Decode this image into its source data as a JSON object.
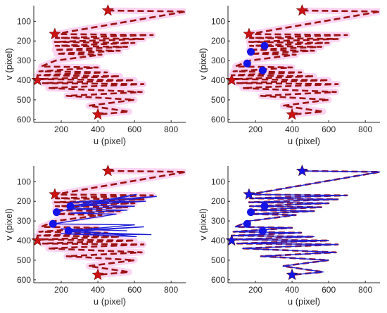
{
  "colors": {
    "reference": "#9c1212",
    "reference_inner": "#d21e1e",
    "tolerance_band": "#f9ccef",
    "tracked": "#1f1fd8",
    "marker_red": "#cc1111",
    "marker_blue": "#1414e6",
    "axis": "#262626"
  },
  "chart_data": [
    {
      "type": "line",
      "panel": "top-left",
      "xlabel": "u (pixel)",
      "ylabel": "v (pixel)",
      "xlim": [
        50,
        880
      ],
      "ylim": [
        20,
        615
      ],
      "y_reversed": true,
      "xticks": [
        200,
        400,
        600,
        800
      ],
      "yticks": [
        100,
        200,
        300,
        400,
        500,
        600
      ],
      "grid": false,
      "series": [
        {
          "role": "reference",
          "style": "dashed",
          "show_band": true,
          "points": [
            [
              455,
              45
            ],
            [
              880,
              50
            ],
            [
              165,
              165
            ],
            [
              700,
              170
            ],
            [
              170,
              185
            ],
            [
              650,
              190
            ],
            [
              165,
              205
            ],
            [
              600,
              210
            ],
            [
              170,
              225
            ],
            [
              560,
              230
            ],
            [
              165,
              245
            ],
            [
              520,
              250
            ],
            [
              175,
              265
            ],
            [
              420,
              270
            ],
            [
              170,
              300
            ],
            [
              90,
              330
            ],
            [
              400,
              335
            ],
            [
              80,
              355
            ],
            [
              450,
              360
            ],
            [
              70,
              375
            ],
            [
              520,
              380
            ],
            [
              75,
              395
            ],
            [
              600,
              400
            ],
            [
              100,
              415
            ],
            [
              650,
              420
            ],
            [
              130,
              440
            ],
            [
              640,
              460
            ],
            [
              230,
              480
            ],
            [
              600,
              500
            ],
            [
              350,
              530
            ],
            [
              570,
              560
            ],
            [
              400,
              575
            ]
          ]
        },
        {
          "role": "stars",
          "color": "red",
          "points": [
            [
              455,
              45
            ],
            [
              165,
              165
            ],
            [
              70,
              400
            ],
            [
              400,
              575
            ]
          ]
        }
      ]
    },
    {
      "type": "line",
      "panel": "top-right",
      "xlabel": "u (pixel)",
      "ylabel": "v (pixel)",
      "xlim": [
        50,
        880
      ],
      "ylim": [
        20,
        615
      ],
      "y_reversed": true,
      "xticks": [
        200,
        400,
        600,
        800
      ],
      "yticks": [
        100,
        200,
        300,
        400,
        500,
        600
      ],
      "grid": false,
      "series": [
        {
          "role": "reference",
          "style": "dashed",
          "show_band": true,
          "points": [
            [
              455,
              45
            ],
            [
              880,
              50
            ],
            [
              165,
              165
            ],
            [
              700,
              170
            ],
            [
              170,
              185
            ],
            [
              650,
              190
            ],
            [
              165,
              205
            ],
            [
              600,
              210
            ],
            [
              170,
              225
            ],
            [
              560,
              230
            ],
            [
              165,
              245
            ],
            [
              520,
              250
            ],
            [
              175,
              265
            ],
            [
              420,
              270
            ],
            [
              170,
              300
            ],
            [
              90,
              330
            ],
            [
              400,
              335
            ],
            [
              80,
              355
            ],
            [
              450,
              360
            ],
            [
              70,
              375
            ],
            [
              520,
              380
            ],
            [
              75,
              395
            ],
            [
              600,
              400
            ],
            [
              100,
              415
            ],
            [
              650,
              420
            ],
            [
              130,
              440
            ],
            [
              640,
              460
            ],
            [
              230,
              480
            ],
            [
              600,
              500
            ],
            [
              350,
              530
            ],
            [
              570,
              560
            ],
            [
              400,
              575
            ]
          ]
        },
        {
          "role": "stars",
          "color": "red",
          "points": [
            [
              455,
              45
            ],
            [
              165,
              165
            ],
            [
              70,
              400
            ],
            [
              400,
              575
            ]
          ]
        },
        {
          "role": "circles",
          "color": "blue",
          "points": [
            [
              250,
              225
            ],
            [
              175,
              255
            ],
            [
              155,
              315
            ],
            [
              240,
              350
            ]
          ]
        }
      ]
    },
    {
      "type": "line",
      "panel": "bottom-left",
      "xlabel": "u (pixel)",
      "ylabel": "v (pixel)",
      "xlim": [
        50,
        880
      ],
      "ylim": [
        20,
        615
      ],
      "y_reversed": true,
      "xticks": [
        200,
        400,
        600,
        800
      ],
      "yticks": [
        100,
        200,
        300,
        400,
        500,
        600
      ],
      "grid": false,
      "series": [
        {
          "role": "reference",
          "style": "dashed",
          "show_band": true,
          "points": [
            [
              455,
              45
            ],
            [
              880,
              50
            ],
            [
              165,
              165
            ],
            [
              700,
              170
            ],
            [
              170,
              185
            ],
            [
              650,
              190
            ],
            [
              165,
              205
            ],
            [
              600,
              210
            ],
            [
              170,
              225
            ],
            [
              560,
              230
            ],
            [
              165,
              245
            ],
            [
              520,
              250
            ],
            [
              175,
              265
            ],
            [
              420,
              270
            ],
            [
              170,
              300
            ],
            [
              90,
              330
            ],
            [
              400,
              335
            ],
            [
              80,
              355
            ],
            [
              450,
              360
            ],
            [
              70,
              375
            ],
            [
              520,
              380
            ],
            [
              75,
              395
            ],
            [
              600,
              400
            ],
            [
              100,
              415
            ],
            [
              650,
              420
            ],
            [
              130,
              440
            ],
            [
              640,
              460
            ],
            [
              230,
              480
            ],
            [
              600,
              500
            ],
            [
              350,
              530
            ],
            [
              570,
              560
            ],
            [
              400,
              575
            ]
          ]
        },
        {
          "role": "tracked",
          "style": "solid",
          "points": [
            [
              175,
              255
            ],
            [
              610,
              165
            ],
            [
              250,
              225
            ],
            [
              720,
              175
            ],
            [
              250,
              205
            ],
            [
              660,
              200
            ],
            [
              250,
              220
            ],
            [
              600,
              225
            ],
            [
              255,
              240
            ],
            [
              560,
              245
            ],
            [
              250,
              260
            ],
            [
              500,
              265
            ],
            [
              155,
              315
            ],
            [
              600,
              320
            ],
            [
              240,
              350
            ],
            [
              650,
              330
            ],
            [
              240,
              355
            ],
            [
              690,
              370
            ],
            [
              200,
              365
            ],
            [
              610,
              380
            ],
            [
              200,
              340
            ],
            [
              560,
              350
            ]
          ]
        },
        {
          "role": "stars",
          "color": "red",
          "points": [
            [
              455,
              45
            ],
            [
              165,
              165
            ],
            [
              70,
              400
            ],
            [
              400,
              575
            ]
          ]
        },
        {
          "role": "circles",
          "color": "blue",
          "points": [
            [
              250,
              225
            ],
            [
              175,
              255
            ],
            [
              155,
              315
            ],
            [
              240,
              350
            ]
          ]
        }
      ]
    },
    {
      "type": "line",
      "panel": "bottom-right",
      "xlabel": "u (pixel)",
      "ylabel": "v (pixel)",
      "xlim": [
        50,
        880
      ],
      "ylim": [
        20,
        615
      ],
      "y_reversed": true,
      "xticks": [
        200,
        400,
        600,
        800
      ],
      "yticks": [
        100,
        200,
        300,
        400,
        500,
        600
      ],
      "grid": false,
      "series": [
        {
          "role": "reference",
          "style": "dashed",
          "show_band": false,
          "points": [
            [
              455,
              45
            ],
            [
              880,
              50
            ],
            [
              165,
              165
            ],
            [
              700,
              170
            ],
            [
              170,
              185
            ],
            [
              650,
              190
            ],
            [
              165,
              205
            ],
            [
              600,
              210
            ],
            [
              170,
              225
            ],
            [
              560,
              230
            ],
            [
              165,
              245
            ],
            [
              520,
              250
            ],
            [
              175,
              265
            ],
            [
              420,
              270
            ],
            [
              170,
              300
            ],
            [
              90,
              330
            ],
            [
              400,
              335
            ],
            [
              80,
              355
            ],
            [
              450,
              360
            ],
            [
              70,
              375
            ],
            [
              520,
              380
            ],
            [
              75,
              395
            ],
            [
              600,
              400
            ],
            [
              100,
              415
            ],
            [
              650,
              420
            ],
            [
              130,
              440
            ],
            [
              640,
              460
            ],
            [
              230,
              480
            ],
            [
              600,
              500
            ],
            [
              350,
              530
            ],
            [
              570,
              560
            ],
            [
              400,
              575
            ]
          ]
        },
        {
          "role": "tracked",
          "style": "solid",
          "points": [
            [
              455,
              45
            ],
            [
              880,
              50
            ],
            [
              165,
              165
            ],
            [
              700,
              170
            ],
            [
              170,
              185
            ],
            [
              650,
              190
            ],
            [
              165,
              205
            ],
            [
              600,
              210
            ],
            [
              170,
              225
            ],
            [
              560,
              230
            ],
            [
              165,
              245
            ],
            [
              520,
              250
            ],
            [
              175,
              265
            ],
            [
              420,
              270
            ],
            [
              170,
              300
            ],
            [
              90,
              330
            ],
            [
              400,
              335
            ],
            [
              80,
              355
            ],
            [
              450,
              360
            ],
            [
              70,
              375
            ],
            [
              520,
              380
            ],
            [
              75,
              395
            ],
            [
              600,
              400
            ],
            [
              100,
              415
            ],
            [
              650,
              420
            ],
            [
              130,
              440
            ],
            [
              640,
              460
            ],
            [
              230,
              480
            ],
            [
              600,
              500
            ],
            [
              350,
              530
            ],
            [
              570,
              560
            ],
            [
              400,
              575
            ]
          ]
        },
        {
          "role": "stars",
          "color": "blue",
          "points": [
            [
              455,
              45
            ],
            [
              165,
              165
            ],
            [
              70,
              400
            ],
            [
              400,
              575
            ]
          ]
        },
        {
          "role": "circles",
          "color": "blue",
          "points": [
            [
              250,
              225
            ],
            [
              175,
              255
            ],
            [
              155,
              315
            ],
            [
              240,
              350
            ]
          ]
        }
      ]
    }
  ]
}
